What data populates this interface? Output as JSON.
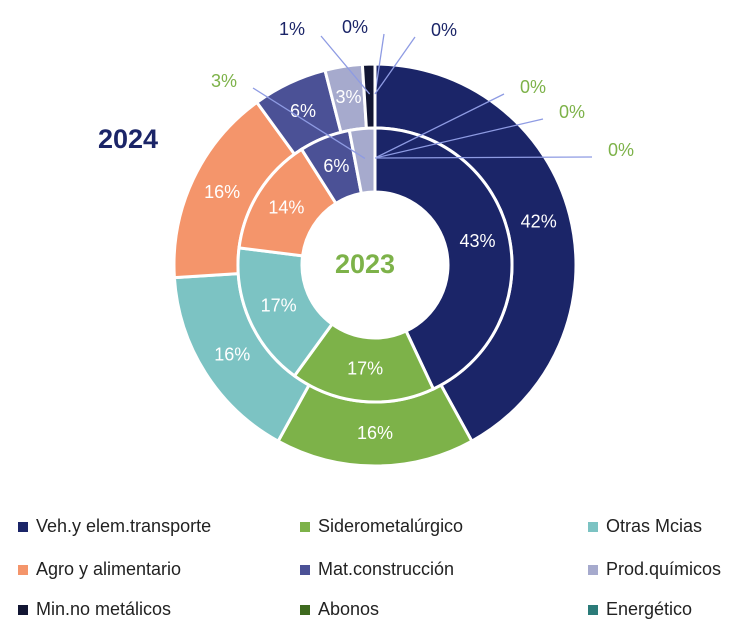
{
  "chart_data": {
    "type": "donut",
    "categories": [
      "Veh.y elem.transporte",
      "Siderometalúrgico",
      "Otras Mcias",
      "Agro y alimentario",
      "Mat.construcción",
      "Prod.químicos",
      "Min.no metálicos",
      "Abonos",
      "Energético"
    ],
    "colors": [
      "#1b2568",
      "#7db249",
      "#7cc3c3",
      "#f4956b",
      "#4b5196",
      "#a6aacd",
      "#121633",
      "#3e6a1f",
      "#2b7b79"
    ],
    "series": [
      {
        "name": "2024",
        "values": [
          42,
          16,
          16,
          16,
          6,
          3,
          1,
          0,
          0
        ],
        "value_labels": [
          "42%",
          "16%",
          "16%",
          "16%",
          "6%",
          "3%",
          "1%",
          "0%",
          "0%"
        ]
      },
      {
        "name": "2023",
        "values": [
          43,
          17,
          17,
          14,
          6,
          3,
          0,
          0,
          0
        ],
        "value_labels": [
          "43%",
          "17%",
          "17%",
          "14%",
          "6%",
          "3%",
          "0%",
          "0%",
          "0%"
        ]
      }
    ],
    "legend": "bottom"
  }
}
